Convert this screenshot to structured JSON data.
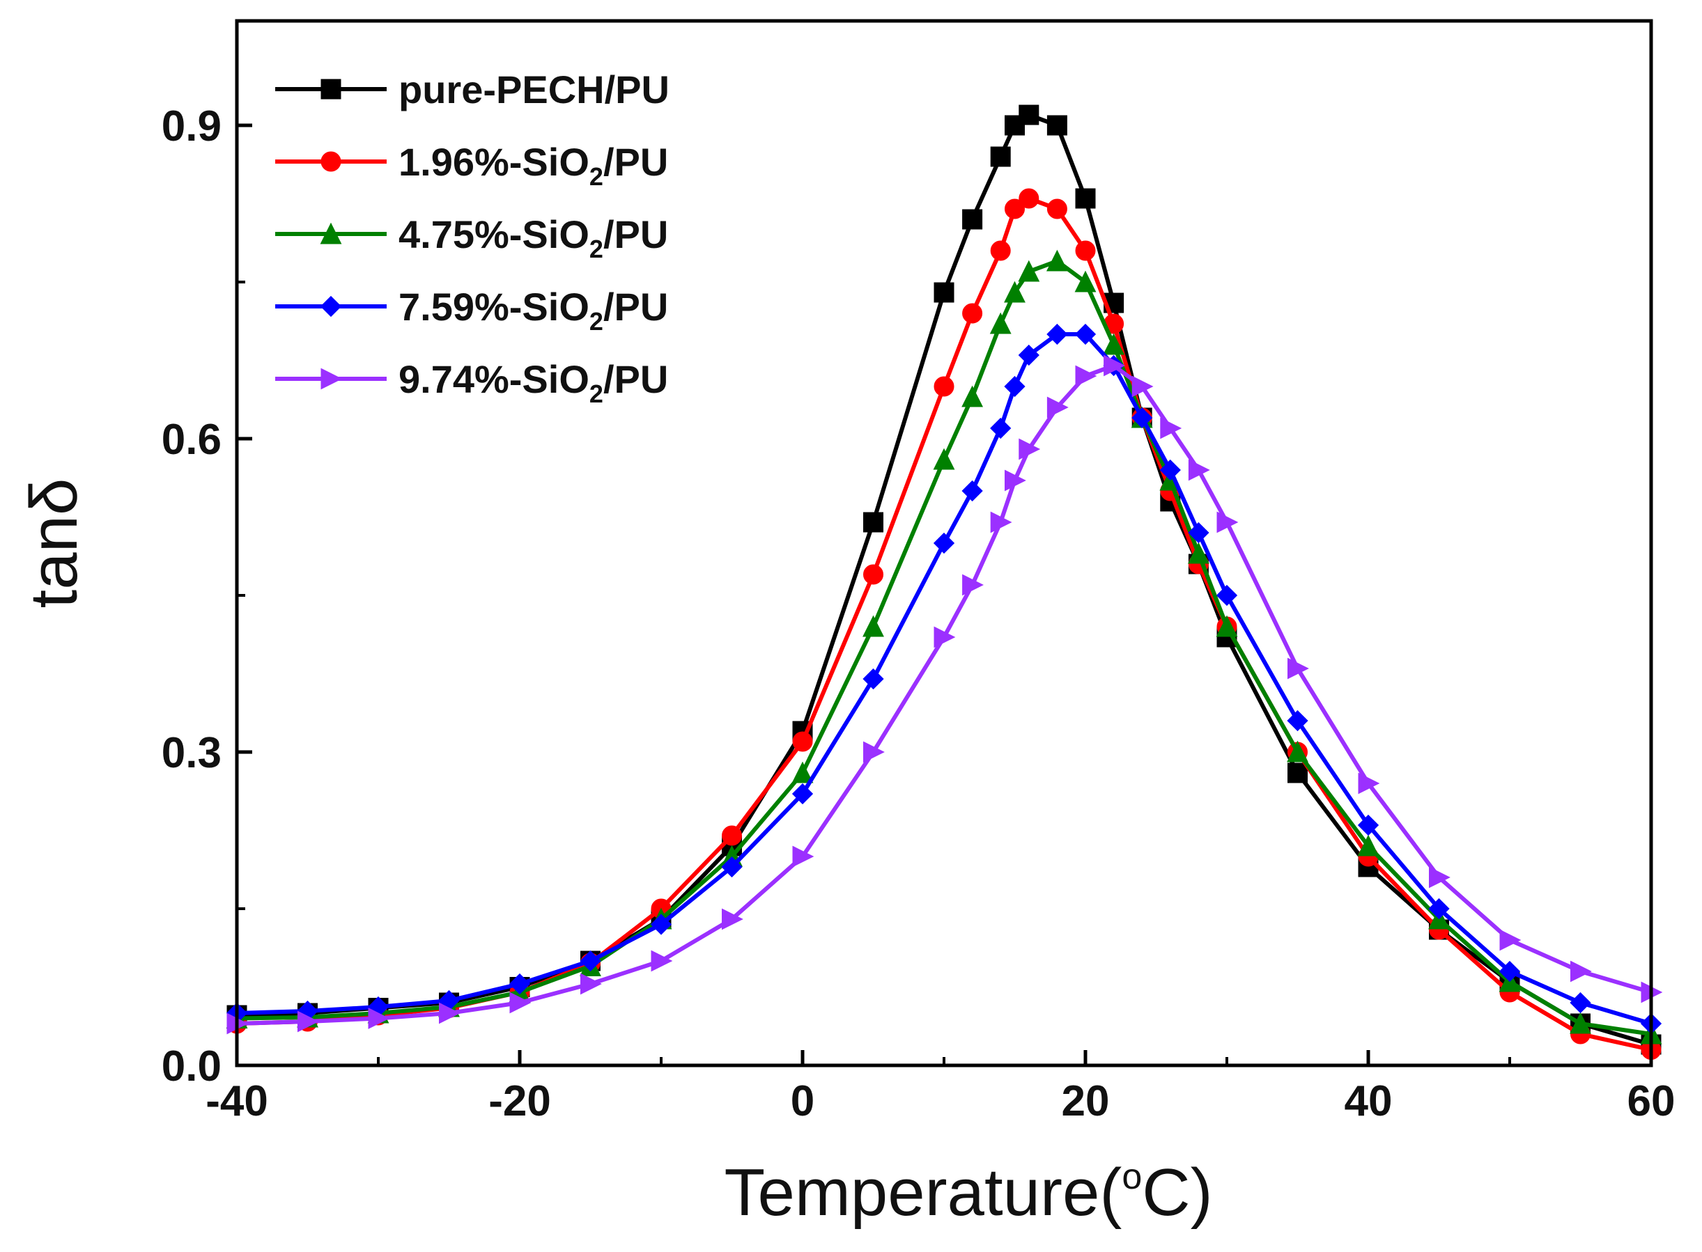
{
  "chart_data": {
    "type": "line",
    "xlabel": "Temperature(",
    "xlabel_sup": "o",
    "xlabel_unit": "C)",
    "ylabel": "tanδ",
    "xlim": [
      -40,
      60
    ],
    "ylim": [
      0,
      1.0
    ],
    "x_ticks": [
      -40,
      -20,
      0,
      20,
      40,
      60
    ],
    "x_tick_labels": [
      "-40",
      "-20",
      "0",
      "20",
      "40",
      "60"
    ],
    "y_ticks": [
      0,
      0.3,
      0.6,
      0.9
    ],
    "y_tick_labels": [
      "0.0",
      "0.3",
      "0.6",
      "0.9"
    ],
    "grid": false,
    "legend_position": "top-left",
    "x": [
      -40,
      -35,
      -30,
      -25,
      -20,
      -15,
      -10,
      -5,
      0,
      5,
      10,
      12,
      14,
      15,
      16,
      18,
      20,
      22,
      24,
      26,
      28,
      30,
      35,
      40,
      45,
      50,
      55,
      60
    ],
    "series": [
      {
        "name": "pure-PECH/PU",
        "legend_main": "pure-PECH/PU",
        "legend_sub": "",
        "legend_tail": "",
        "color": "#000000",
        "marker": "square",
        "values": [
          0.048,
          0.05,
          0.055,
          0.06,
          0.075,
          0.1,
          0.14,
          0.21,
          0.32,
          0.52,
          0.74,
          0.81,
          0.87,
          0.9,
          0.91,
          0.9,
          0.83,
          0.73,
          0.62,
          0.54,
          0.48,
          0.41,
          0.28,
          0.19,
          0.13,
          0.08,
          0.04,
          0.02
        ]
      },
      {
        "name": "1.96%-SiO2/PU",
        "legend_main": "1.96%-SiO",
        "legend_sub": "2",
        "legend_tail": "/PU",
        "color": "#ff0000",
        "marker": "circle",
        "values": [
          0.04,
          0.042,
          0.048,
          0.055,
          0.07,
          0.098,
          0.15,
          0.22,
          0.31,
          0.47,
          0.65,
          0.72,
          0.78,
          0.82,
          0.83,
          0.82,
          0.78,
          0.71,
          0.62,
          0.55,
          0.48,
          0.42,
          0.3,
          0.2,
          0.13,
          0.07,
          0.03,
          0.015
        ]
      },
      {
        "name": "4.75%-SiO2/PU",
        "legend_main": "4.75%-SiO",
        "legend_sub": "2",
        "legend_tail": "/PU",
        "color": "#008000",
        "marker": "triangle-up",
        "values": [
          0.045,
          0.046,
          0.05,
          0.056,
          0.07,
          0.095,
          0.14,
          0.2,
          0.28,
          0.42,
          0.58,
          0.64,
          0.71,
          0.74,
          0.76,
          0.77,
          0.75,
          0.69,
          0.62,
          0.56,
          0.49,
          0.42,
          0.3,
          0.21,
          0.14,
          0.08,
          0.04,
          0.03
        ]
      },
      {
        "name": "7.59%-SiO2/PU",
        "legend_main": "7.59%-SiO",
        "legend_sub": "2",
        "legend_tail": "/PU",
        "color": "#0000ff",
        "marker": "diamond",
        "values": [
          0.05,
          0.052,
          0.056,
          0.062,
          0.078,
          0.1,
          0.135,
          0.19,
          0.26,
          0.37,
          0.5,
          0.55,
          0.61,
          0.65,
          0.68,
          0.7,
          0.7,
          0.67,
          0.62,
          0.57,
          0.51,
          0.45,
          0.33,
          0.23,
          0.15,
          0.09,
          0.06,
          0.04
        ]
      },
      {
        "name": "9.74%-SiO2/PU",
        "legend_main": "9.74%-SiO",
        "legend_sub": "2",
        "legend_tail": "/PU",
        "color": "#9b30ff",
        "marker": "triangle-right",
        "values": [
          0.04,
          0.042,
          0.045,
          0.05,
          0.06,
          0.078,
          0.1,
          0.14,
          0.2,
          0.3,
          0.41,
          0.46,
          0.52,
          0.56,
          0.59,
          0.63,
          0.66,
          0.67,
          0.65,
          0.61,
          0.57,
          0.52,
          0.38,
          0.27,
          0.18,
          0.12,
          0.09,
          0.07
        ]
      }
    ]
  }
}
